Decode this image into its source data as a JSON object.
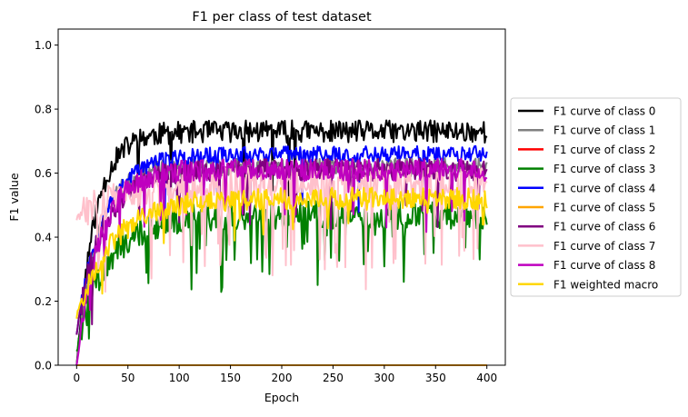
{
  "chart_data": {
    "type": "line",
    "title": "F1 per class of test dataset",
    "xlabel": "Epoch",
    "ylabel": "F1 value",
    "xlim": [
      -18,
      418
    ],
    "ylim": [
      0,
      1.05
    ],
    "xticks": [
      0,
      50,
      100,
      150,
      200,
      250,
      300,
      350,
      400
    ],
    "yticks": [
      0.0,
      0.2,
      0.4,
      0.6,
      0.8,
      1.0
    ],
    "ytick_labels": [
      "0.0",
      "0.2",
      "0.4",
      "0.6",
      "0.8",
      "1.0"
    ],
    "grid": false,
    "legend_position": "right-outside",
    "epochs": 400,
    "series": [
      {
        "name": "F1 curve of class 0",
        "color": "#000000",
        "start": 0.0,
        "plateau": 0.73,
        "rise": 18,
        "noise": 0.035,
        "drops": 0.02,
        "drop_depth": 0.35,
        "seed": 11
      },
      {
        "name": "F1 curve of class 1",
        "color": "#808080",
        "start": 0.0,
        "plateau": 0.62,
        "rise": 20,
        "noise": 0.03,
        "drops": 0.0,
        "drop_depth": 0.0,
        "seed": 23
      },
      {
        "name": "F1 curve of class 2",
        "color": "#ff0000",
        "start": 0.0,
        "plateau": 0.0,
        "rise": 1,
        "noise": 0.0,
        "drops": 0.0,
        "drop_depth": 0.0,
        "seed": 31
      },
      {
        "name": "F1 curve of class 3",
        "color": "#008000",
        "start": 0.05,
        "plateau": 0.47,
        "rise": 30,
        "noise": 0.045,
        "drops": 0.12,
        "drop_depth": 0.22,
        "seed": 47
      },
      {
        "name": "F1 curve of class 4",
        "color": "#0000ff",
        "start": 0.1,
        "plateau": 0.66,
        "rise": 25,
        "noise": 0.025,
        "drops": 0.03,
        "drop_depth": 0.2,
        "seed": 53
      },
      {
        "name": "F1 curve of class 5",
        "color": "#ffa500",
        "start": 0.0,
        "plateau": 0.0,
        "rise": 1,
        "noise": 0.0,
        "drops": 0.0,
        "drop_depth": 0.0,
        "seed": 61
      },
      {
        "name": "F1 curve of class 6",
        "color": "#800080",
        "start": 0.1,
        "plateau": 0.61,
        "rise": 25,
        "noise": 0.035,
        "drops": 0.04,
        "drop_depth": 0.2,
        "seed": 71
      },
      {
        "name": "F1 curve of class 7",
        "color": "#ffc0cb",
        "start": 0.46,
        "plateau": 0.57,
        "rise": 40,
        "noise": 0.05,
        "drops": 0.1,
        "drop_depth": 0.3,
        "seed": 83
      },
      {
        "name": "F1 curve of class 8",
        "color": "#bf00bf",
        "start": 0.0,
        "plateau": 0.61,
        "rise": 22,
        "noise": 0.035,
        "drops": 0.05,
        "drop_depth": 0.18,
        "seed": 97
      },
      {
        "name": "F1 weighted macro",
        "color": "#ffd700",
        "start": 0.15,
        "plateau": 0.52,
        "rise": 35,
        "noise": 0.035,
        "drops": 0.02,
        "drop_depth": 0.12,
        "seed": 101
      }
    ]
  }
}
